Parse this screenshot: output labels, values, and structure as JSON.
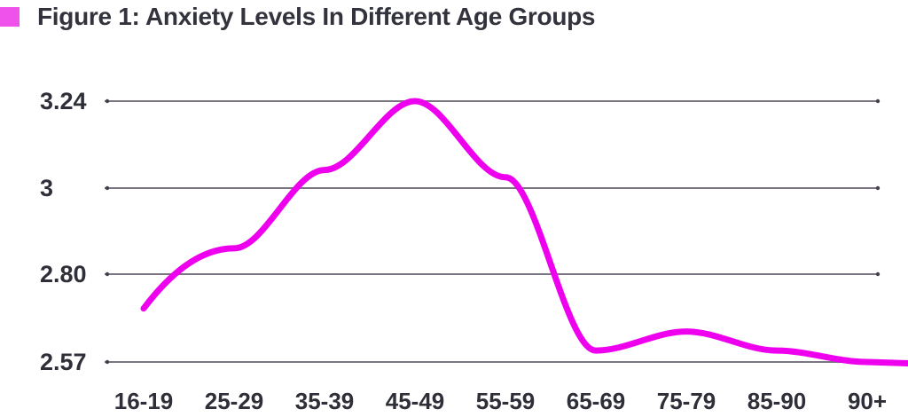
{
  "title": {
    "text": "Figure 1: Anxiety Levels In Different Age Groups",
    "bullet_color": "#ef52ea"
  },
  "chart_data": {
    "type": "line",
    "title": "Figure 1: Anxiety Levels In Different Age Groups",
    "categories": [
      "16-19",
      "25-29",
      "35-39",
      "45-49",
      "55-59",
      "65-69",
      "75-79",
      "85-90",
      "90+"
    ],
    "series": [
      {
        "name": "Anxiety level",
        "values": [
          2.71,
          2.86,
          3.05,
          3.24,
          3.03,
          2.6,
          2.65,
          2.6,
          2.57
        ]
      }
    ],
    "y_ticks": [
      {
        "label": "3.24",
        "value": 3.24
      },
      {
        "label": "3",
        "value": 3.0
      },
      {
        "label": "2.80",
        "value": 2.8
      },
      {
        "label": "2.57",
        "value": 2.57
      }
    ],
    "ylim": [
      2.57,
      3.24
    ],
    "xlabel": "",
    "ylabel": "",
    "grid": "horizontal",
    "legend": "none",
    "colors": {
      "line": "#ee00ee",
      "gridline": "#7b7581",
      "gridline_end_dot": "#45414c",
      "axis_text": "#2f2f39",
      "title_text": "#33333d"
    }
  }
}
